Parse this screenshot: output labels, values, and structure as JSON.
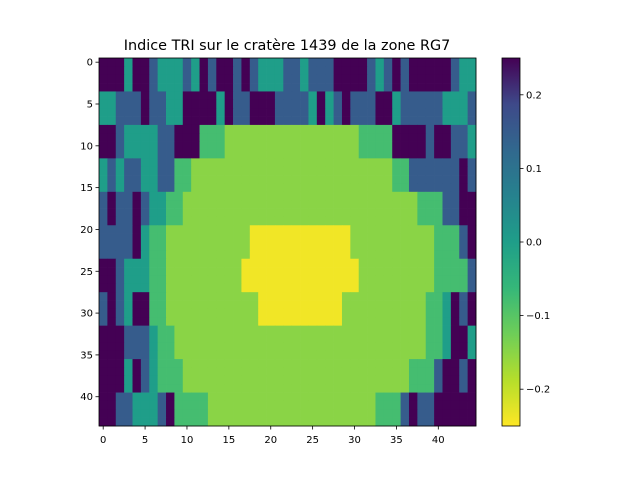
{
  "chart_data": {
    "type": "heatmap",
    "title": "Indice TRI sur le cratère 1439 de la zone RG7",
    "xlabel": "",
    "ylabel": "",
    "colormap": "viridis_r",
    "grid": false,
    "colorbar": {
      "position": "right",
      "vmin": -0.25,
      "vmax": 0.25,
      "ticks": [
        0.2,
        0.1,
        0.0,
        -0.1,
        -0.2
      ],
      "tick_labels": [
        "0.2",
        "0.1",
        "0.0",
        "−0.1",
        "−0.2"
      ]
    },
    "x_ticks": [
      0,
      5,
      10,
      15,
      20,
      25,
      30,
      35,
      40
    ],
    "y_ticks": [
      0,
      5,
      10,
      15,
      20,
      25,
      30,
      35,
      40
    ],
    "x_range": [
      -0.5,
      44.5
    ],
    "y_range": [
      43.5,
      -0.5
    ],
    "ncols": 45,
    "nrows": 44,
    "grid_resolution_note_values": "approximate block-averaged estimate of pixel values",
    "rows": [
      "SSS-SSH---H-SHSSHSH---HH-HHHSSSSH-HSHSSSSSH--",
      "SSS-SSH---H-SHSSHSH---HH-HHHSSSSH-HSHSSSSSH--",
      "SSS-SSH---H-SHSSHSH---HH-HHHSSSSH-HSHSSSSSH--",
      "SSS-SSH---H-SHSSHSH---HH-HHHSSSSH-HSHSSSSSH--",
      "--HHHSHH--SSSS-SHHSSSHHHH-S-HSHHHSS-HHHHH---H",
      "--HHHSHH--SSSS-SHHSSSHHHH-S-HSHHHSS-HHHHH---H",
      "--HHHSHH--SSSS-SHHSSSHHHH-S-HSHHHSS-HHHHH---H",
      "--HHHSHH--SSSS-SHHSSSHHHH-S-HSHHHSS-HHHHH---H",
      "SSH----HHSSS00011111111111111110000SSSSHSSHH-",
      "SSH----HHSSS00011111111111111110000SSSSHSSHH-",
      "SSH----HHSSS00011111111111111110000SSSSHSSHH-",
      "SSH----HHSSS00011111111111111110000SSSSHSSHH-",
      "-H-HH--HH0011111111111111111111111100HHHHHHSH",
      "-H-HH--HH0011111111111111111111111100HHHHHHSH",
      "-H-HH--HH0011111111111111111111111100HHHHHHSH",
      "-H-HH--HH0011111111111111111111111100HHHHHHSH",
      "HSHHSH--001111111111111111111111111111000HHSS",
      "HSHHSH--001111111111111111111111111111000HHSS",
      "HSHHSH--001111111111111111111111111111000HHSS",
      "HSHHSH--001111111111111111111111111111000HHSS",
      "HHHHS-0011111111112222222222221111111111000HS",
      "HHHHS-0011111111112222222222221111111111000HS",
      "HHHHS-0011111111112222222222221111111111000HS",
      "HHHHS-0011111111112222222222221111111111000HS",
      "SSH---00111111111222222222222221111111110000H",
      "SSH---00111111111222222222222221111111110000H",
      "SSH---00111111111222222222222221111111110000H",
      "SSH---00111111111222222222222221111111110000H",
      "HSH-SS00111111111112222222222111111111100-SHS",
      "HSH-SS00111111111112222222222111111111100-SHS",
      "HSH-SS00111111111112222222222111111111100-SHS",
      "HSH-SS00111111111112222222222111111111100-SHS",
      "SSSHHH-0011111111111111111111111111111100-SS-",
      "SSSHHH-0011111111111111111111111111111100-SS-",
      "SSSHHH-0011111111111111111111111111111100-SS-",
      "SSSHHH-0011111111111111111111111111111100-SS-",
      "SSS-SH-000111111111111111111111111111000HSSHS",
      "SSS-SH-000111111111111111111111111111000HSSHS",
      "SSS-SH-000111111111111111111111111111000HSSHS",
      "SSS-SH-000111111111111111111111111111000HSSHS",
      "SSHH---HS000011111111111111111111000HSHHSSSSS",
      "SSHH---HS000011111111111111111111000HSHHSSSSS",
      "SSHH---HS000011111111111111111111000HSHHSSSSS",
      "SSHH---HS000011111111111111111111000HSHHSSSSS"
    ],
    "value_key": {
      "S": 0.25,
      "H": 0.15,
      "-": 0.0,
      "0": -0.08,
      "1": -0.15,
      "2": -0.24
    }
  }
}
